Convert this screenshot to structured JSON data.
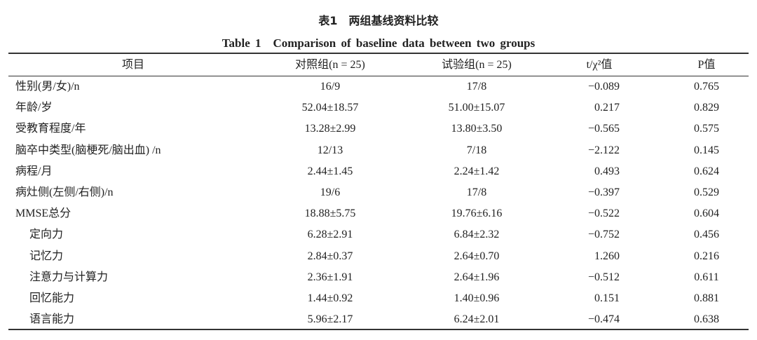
{
  "title": "表1　两组基线资料比较",
  "subtitle": "Table 1　Comparison of baseline data between two groups",
  "table": {
    "header": [
      "项目",
      "对照组(n = 25)",
      "试验组(n = 25)",
      "t/χ²值",
      "P值"
    ],
    "rows": [
      [
        "性别(男/女)/n",
        "16/9",
        "17/8",
        "−0.089",
        "0.765"
      ],
      [
        "年龄/岁",
        "52.04±18.57",
        "51.00±15.07",
        "0.217",
        "0.829"
      ],
      [
        "受教育程度/年",
        "13.28±2.99",
        "13.80±3.50",
        "−0.565",
        "0.575"
      ],
      [
        "脑卒中类型(脑梗死/脑出血) /n",
        "12/13",
        "7/18",
        "−2.122",
        "0.145"
      ],
      [
        "病程/月",
        "2.44±1.45",
        "2.24±1.42",
        "0.493",
        "0.624"
      ],
      [
        "病灶侧(左侧/右侧)/n",
        "19/6",
        "17/8",
        "−0.397",
        "0.529"
      ],
      [
        "MMSE总分",
        "18.88±5.75",
        "19.76±6.16",
        "−0.522",
        "0.604"
      ],
      [
        "定向力",
        "6.28±2.91",
        "6.84±2.32",
        "−0.752",
        "0.456"
      ],
      [
        "记忆力",
        "2.84±0.37",
        "2.64±0.70",
        "1.260",
        "0.216"
      ],
      [
        "注意力与计算力",
        "2.36±1.91",
        "2.64±1.96",
        "−0.512",
        "0.611"
      ],
      [
        "回忆能力",
        "1.44±0.92",
        "1.40±0.96",
        "0.151",
        "0.881"
      ],
      [
        "语言能力",
        "5.96±2.17",
        "6.24±2.01",
        "−0.474",
        "0.638"
      ]
    ]
  }
}
